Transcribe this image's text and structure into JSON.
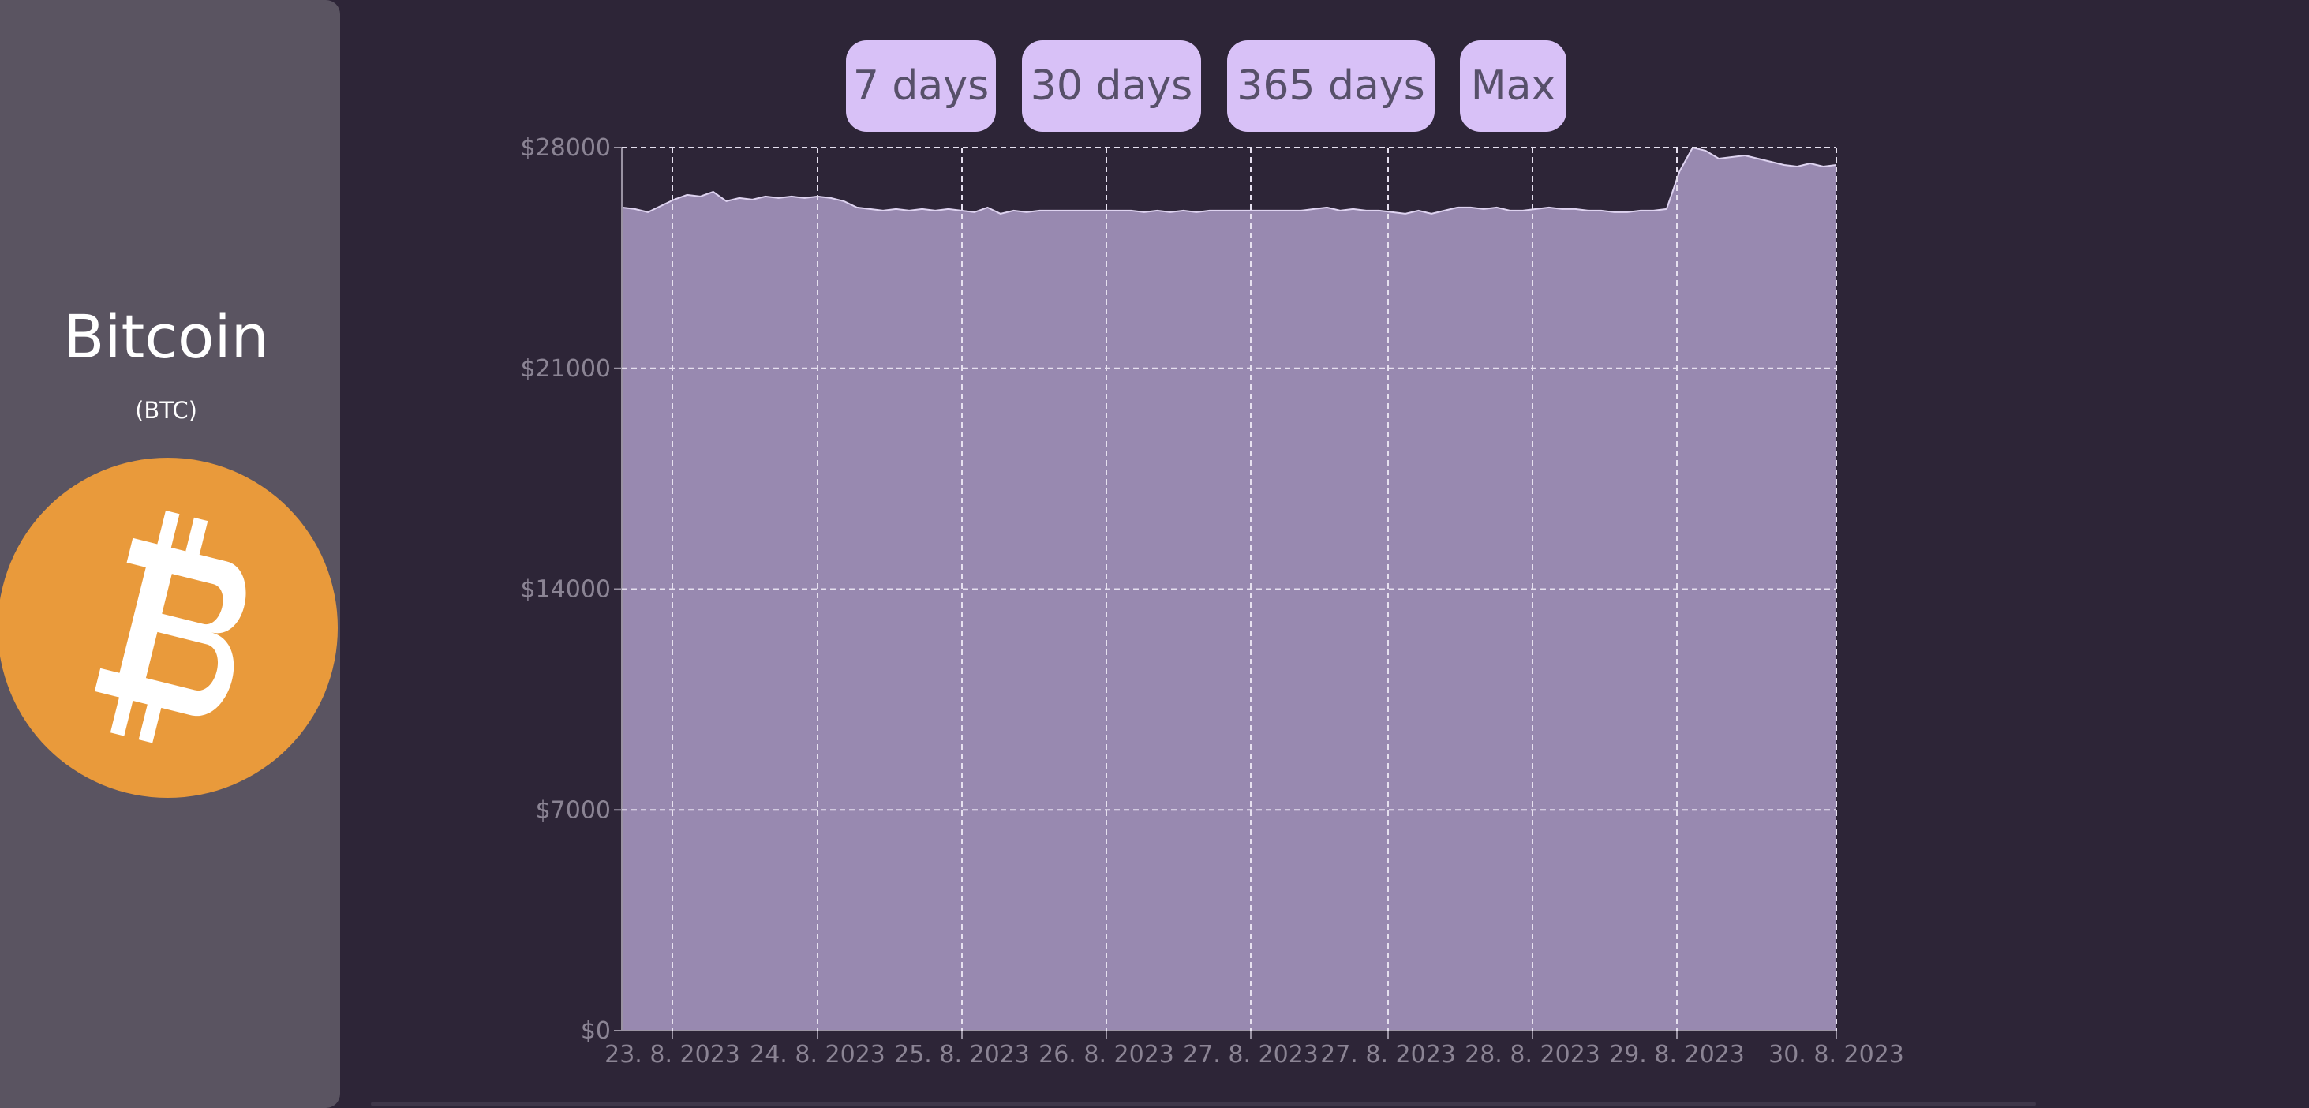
{
  "sidebar": {
    "coin_name": "Bitcoin",
    "coin_symbol": "(BTC)",
    "logo_icon": "bitcoin-logo-icon",
    "logo_color": "#e99a3b"
  },
  "range_buttons": [
    "7 days",
    "30 days",
    "365 days",
    "Max"
  ],
  "colors": {
    "background": "#2d2537",
    "sidebar": "#5a5461",
    "button": "#d8c1f7",
    "area_fill": "#9889b0",
    "area_stroke": "#ded3f0",
    "grid": "#e6e0ef",
    "tick_text": "#8b8494"
  },
  "chart_data": {
    "type": "area",
    "title": "",
    "xlabel": "",
    "ylabel": "",
    "ylim": [
      0,
      28000
    ],
    "y_ticks": [
      "$0",
      "$7000",
      "$14000",
      "$21000",
      "$28000"
    ],
    "x_ticks": [
      "23. 8. 2023",
      "24. 8. 2023",
      "25. 8. 2023",
      "26. 8. 2023",
      "27. 8. 2023",
      "27. 8. 2023",
      "28. 8. 2023",
      "29. 8. 2023",
      "30. 8. 2023"
    ],
    "grid": true,
    "series": [
      {
        "values": [
          26100,
          26050,
          25950,
          26150,
          26350,
          26500,
          26450,
          26600,
          26300,
          26400,
          26350,
          26450,
          26400,
          26450,
          26400,
          26450,
          26400,
          26300,
          26100,
          26050,
          26000,
          26050,
          26000,
          26050,
          26000,
          26050,
          26000,
          25950,
          26100,
          25900,
          26000,
          25950,
          26000,
          26000,
          26000,
          26000,
          26000,
          26000,
          26000,
          26000,
          25950,
          26000,
          25950,
          26000,
          25950,
          26000,
          26000,
          26000,
          26000,
          26000,
          26000,
          26000,
          26000,
          26050,
          26100,
          26000,
          26050,
          26000,
          26000,
          25950,
          25900,
          26000,
          25900,
          26000,
          26100,
          26100,
          26050,
          26100,
          26000,
          26000,
          26050,
          26100,
          26050,
          26050,
          26000,
          26000,
          25950,
          25950,
          26000,
          26000,
          26050,
          27250,
          28000,
          27900,
          27650,
          27700,
          27750,
          27650,
          27550,
          27450,
          27400,
          27500,
          27400,
          27450
        ]
      }
    ]
  }
}
